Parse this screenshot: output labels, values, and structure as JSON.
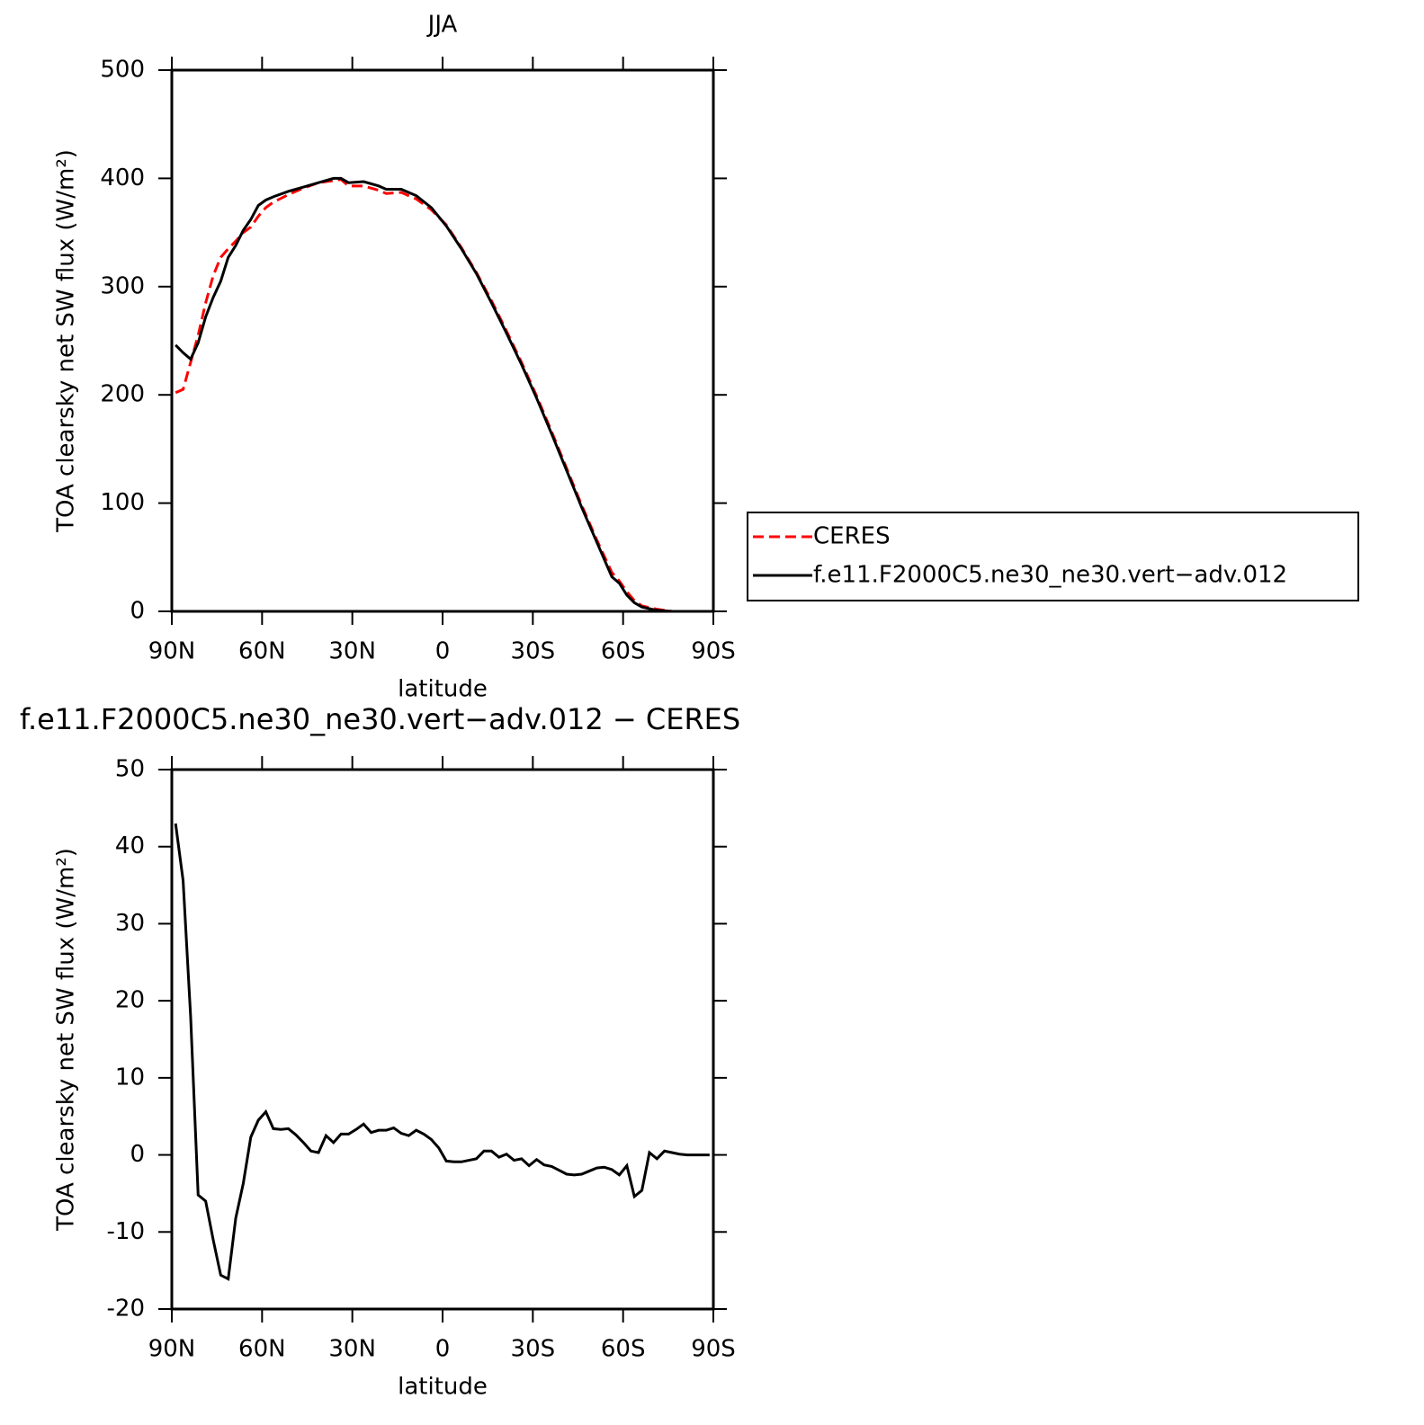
{
  "chart_data": [
    {
      "type": "line",
      "title": "JJA",
      "x_label": "latitude",
      "y_label": "TOA clearsky net SW flux (W/m²)",
      "xlim": [
        90,
        -90
      ],
      "ylim": [
        0,
        500
      ],
      "xticks": [
        {
          "value": 90,
          "label": "90N"
        },
        {
          "value": 60,
          "label": "60N"
        },
        {
          "value": 30,
          "label": "30N"
        },
        0,
        {
          "value": -30,
          "label": "30S"
        },
        {
          "value": -60,
          "label": "60S"
        },
        {
          "value": -90,
          "label": "90S"
        }
      ],
      "yticks": [
        0,
        100,
        200,
        300,
        400,
        500
      ],
      "legend": "right",
      "x": [
        88.75,
        86.25,
        83.75,
        81.25,
        78.75,
        76.25,
        73.75,
        71.25,
        68.75,
        66.25,
        63.75,
        61.25,
        58.75,
        56.25,
        51.25,
        46.25,
        41.25,
        36.25,
        33.75,
        31.25,
        26.25,
        21.25,
        18.75,
        13.75,
        8.75,
        3.75,
        -1.25,
        -6.25,
        -11.25,
        -16.25,
        -21.25,
        -26.25,
        -31.25,
        -36.25,
        -41.25,
        -46.25,
        -51.25,
        -56.25,
        -58.75,
        -61.25,
        -63.75,
        -66.25,
        -71.25,
        -76.25,
        -81.25,
        -88.75
      ],
      "series": [
        {
          "name": "CERES",
          "color": "#ff0000",
          "line_style": "dashed",
          "values": [
            202,
            205,
            230,
            255,
            285,
            310,
            327,
            335,
            342,
            350,
            355,
            365,
            373,
            378,
            385,
            391,
            396,
            398,
            399,
            393,
            393,
            389,
            386,
            387,
            381,
            371,
            357,
            336,
            313,
            287,
            259,
            230,
            199,
            166,
            132,
            98,
            66,
            36,
            28,
            18,
            10,
            5,
            2,
            0,
            0,
            0
          ]
        },
        {
          "name": "f.e11.F2000C5.ne30_ne30.vert−adv.012",
          "color": "#000000",
          "line_style": "solid",
          "values": [
            246,
            239,
            233,
            248,
            272,
            290,
            305,
            327,
            338,
            352,
            362,
            375,
            380,
            383,
            388,
            392,
            396,
            400,
            400,
            396,
            397,
            393,
            390,
            390,
            384,
            373,
            356,
            335,
            312,
            285,
            257,
            228,
            197,
            164,
            130,
            96,
            64,
            32,
            26,
            15,
            8,
            4,
            1,
            0,
            0,
            0
          ]
        }
      ]
    },
    {
      "type": "line",
      "title": "f.e11.F2000C5.ne30_ne30.vert−adv.012 − CERES",
      "x_label": "latitude",
      "y_label": "TOA clearsky net SW flux (W/m²)",
      "xlim": [
        90,
        -90
      ],
      "ylim": [
        -20,
        50
      ],
      "xticks": [
        {
          "value": 90,
          "label": "90N"
        },
        {
          "value": 60,
          "label": "60N"
        },
        {
          "value": 30,
          "label": "30N"
        },
        0,
        {
          "value": -30,
          "label": "30S"
        },
        {
          "value": -60,
          "label": "60S"
        },
        {
          "value": -90,
          "label": "90S"
        }
      ],
      "yticks": [
        -20,
        -10,
        0,
        10,
        20,
        30,
        40,
        50
      ],
      "x": [
        88.75,
        86.25,
        83.75,
        81.25,
        78.75,
        76.25,
        73.75,
        71.25,
        68.75,
        66.25,
        63.75,
        61.25,
        58.75,
        56.25,
        53.75,
        51.25,
        48.75,
        46.25,
        43.75,
        41.25,
        38.75,
        36.25,
        33.75,
        31.25,
        28.75,
        26.25,
        23.75,
        21.25,
        18.75,
        16.25,
        13.75,
        11.25,
        8.75,
        6.25,
        3.75,
        1.25,
        -1.25,
        -3.75,
        -6.25,
        -8.75,
        -11.25,
        -13.75,
        -16.25,
        -18.75,
        -21.25,
        -23.75,
        -26.25,
        -28.75,
        -31.25,
        -33.75,
        -36.25,
        -38.75,
        -41.25,
        -43.75,
        -46.25,
        -48.75,
        -51.25,
        -53.75,
        -56.25,
        -58.75,
        -61.25,
        -63.75,
        -66.25,
        -68.75,
        -71.25,
        -73.75,
        -76.25,
        -78.75,
        -81.25,
        -83.75,
        -86.25,
        -88.75
      ],
      "series": [
        {
          "color": "#000000",
          "line_style": "solid",
          "values": [
            43,
            35.6,
            18,
            -5.2,
            -6,
            -11,
            -15.6,
            -16.1,
            -8.2,
            -3.7,
            2.3,
            4.5,
            5.6,
            3.4,
            3.3,
            3.4,
            2.6,
            1.6,
            0.5,
            0.3,
            2.5,
            1.6,
            2.7,
            2.7,
            3.3,
            4,
            2.9,
            3.2,
            3.2,
            3.5,
            2.8,
            2.5,
            3.2,
            2.7,
            2,
            0.9,
            -0.8,
            -0.9,
            -0.9,
            -0.7,
            -0.5,
            0.5,
            0.5,
            -0.3,
            0.1,
            -0.7,
            -0.5,
            -1.4,
            -0.6,
            -1.3,
            -1.5,
            -2,
            -2.5,
            -2.6,
            -2.5,
            -2.1,
            -1.7,
            -1.6,
            -1.9,
            -2.6,
            -1.4,
            -5.4,
            -4.6,
            0.3,
            -0.5,
            0.5,
            0.3,
            0.1,
            0,
            0,
            0,
            0
          ]
        }
      ]
    }
  ]
}
